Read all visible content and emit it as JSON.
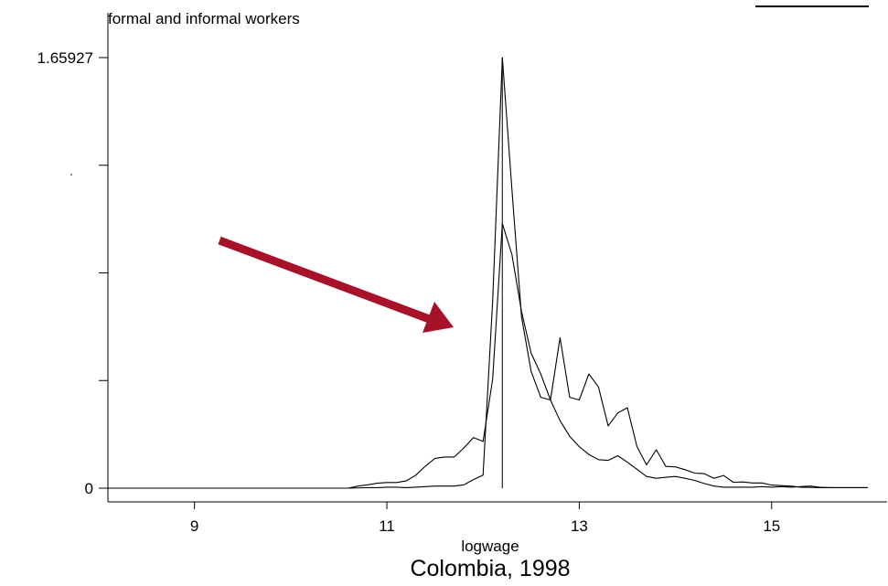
{
  "chart_data": {
    "type": "line",
    "title": "Colombia, 1998",
    "subtitle": "formal and informal workers",
    "xlabel": "logwage",
    "ylabel": "",
    "xlim": [
      8.1,
      16.2
    ],
    "ylim": [
      0,
      1.65927
    ],
    "x_ticks": [
      9,
      11,
      13,
      15
    ],
    "y_tick_labels": [
      {
        "value": 0,
        "label": "0"
      },
      {
        "value": 1.65927,
        "label": "1.65927"
      }
    ],
    "y_minor_ticks": [
      0.4148,
      0.8296,
      1.2444
    ],
    "series": [
      {
        "values": [
          [
            8.1,
            0
          ],
          [
            10.6,
            0
          ],
          [
            10.7,
            0.008
          ],
          [
            10.8,
            0.013
          ],
          [
            10.9,
            0.019
          ],
          [
            11.0,
            0.022
          ],
          [
            11.1,
            0.022
          ],
          [
            11.2,
            0.028
          ],
          [
            11.3,
            0.05
          ],
          [
            11.4,
            0.085
          ],
          [
            11.5,
            0.115
          ],
          [
            11.6,
            0.12
          ],
          [
            11.7,
            0.12
          ],
          [
            11.8,
            0.155
          ],
          [
            11.9,
            0.195
          ],
          [
            12.0,
            0.18
          ],
          [
            12.1,
            0.42
          ],
          [
            12.2,
            1.02
          ],
          [
            12.3,
            0.9
          ],
          [
            12.4,
            0.68
          ],
          [
            12.5,
            0.52
          ],
          [
            12.6,
            0.44
          ],
          [
            12.7,
            0.34
          ],
          [
            12.8,
            0.26
          ],
          [
            12.9,
            0.2
          ],
          [
            13.0,
            0.16
          ],
          [
            13.1,
            0.13
          ],
          [
            13.2,
            0.11
          ],
          [
            13.3,
            0.107
          ],
          [
            13.4,
            0.125
          ],
          [
            13.5,
            0.1
          ],
          [
            13.6,
            0.073
          ],
          [
            13.7,
            0.045
          ],
          [
            13.8,
            0.038
          ],
          [
            13.9,
            0.042
          ],
          [
            14.0,
            0.045
          ],
          [
            14.1,
            0.038
          ],
          [
            14.2,
            0.03
          ],
          [
            14.3,
            0.018
          ],
          [
            14.4,
            0.008
          ],
          [
            14.5,
            0.004
          ],
          [
            14.6,
            0.004
          ],
          [
            14.7,
            0.004
          ],
          [
            14.8,
            0.004
          ],
          [
            14.9,
            0.006
          ],
          [
            15.0,
            0.004
          ],
          [
            15.1,
            0.006
          ],
          [
            15.2,
            0.004
          ],
          [
            15.3,
            0.006
          ],
          [
            15.4,
            0.008
          ],
          [
            15.5,
            0.004
          ],
          [
            15.6,
            0.002
          ],
          [
            15.7,
            0.002
          ],
          [
            16.0,
            0.002
          ]
        ]
      },
      {
        "values": [
          [
            8.1,
            0
          ],
          [
            10.6,
            0
          ],
          [
            10.8,
            0.002
          ],
          [
            10.9,
            0.002
          ],
          [
            11.0,
            0.004
          ],
          [
            11.1,
            0.004
          ],
          [
            11.2,
            0.002
          ],
          [
            11.3,
            0.004
          ],
          [
            11.4,
            0.006
          ],
          [
            11.5,
            0.008
          ],
          [
            11.6,
            0.008
          ],
          [
            11.7,
            0.008
          ],
          [
            11.8,
            0.013
          ],
          [
            11.9,
            0.033
          ],
          [
            12.0,
            0.05
          ],
          [
            12.1,
            0.72
          ],
          [
            12.2,
            1.65927
          ],
          [
            12.3,
            1.15
          ],
          [
            12.4,
            0.66
          ],
          [
            12.5,
            0.45
          ],
          [
            12.6,
            0.35
          ],
          [
            12.7,
            0.34
          ],
          [
            12.8,
            0.58
          ],
          [
            12.9,
            0.35
          ],
          [
            13.0,
            0.34
          ],
          [
            13.1,
            0.44
          ],
          [
            13.2,
            0.39
          ],
          [
            13.3,
            0.24
          ],
          [
            13.4,
            0.29
          ],
          [
            13.5,
            0.31
          ],
          [
            13.6,
            0.16
          ],
          [
            13.7,
            0.09
          ],
          [
            13.8,
            0.148
          ],
          [
            13.9,
            0.084
          ],
          [
            14.0,
            0.082
          ],
          [
            14.1,
            0.071
          ],
          [
            14.2,
            0.058
          ],
          [
            14.3,
            0.056
          ],
          [
            14.4,
            0.038
          ],
          [
            14.5,
            0.049
          ],
          [
            14.6,
            0.023
          ],
          [
            14.7,
            0.024
          ],
          [
            14.8,
            0.02
          ],
          [
            14.9,
            0.02
          ],
          [
            15.0,
            0.012
          ],
          [
            15.1,
            0.01
          ],
          [
            15.2,
            0.008
          ],
          [
            15.3,
            0.004
          ],
          [
            15.5,
            0.002
          ],
          [
            16.0,
            0.002
          ]
        ]
      }
    ],
    "reference_line": {
      "x": 12.2
    },
    "annotation": {
      "type": "arrow",
      "color": "#a6122a"
    },
    "grid": false,
    "legend": "none"
  }
}
